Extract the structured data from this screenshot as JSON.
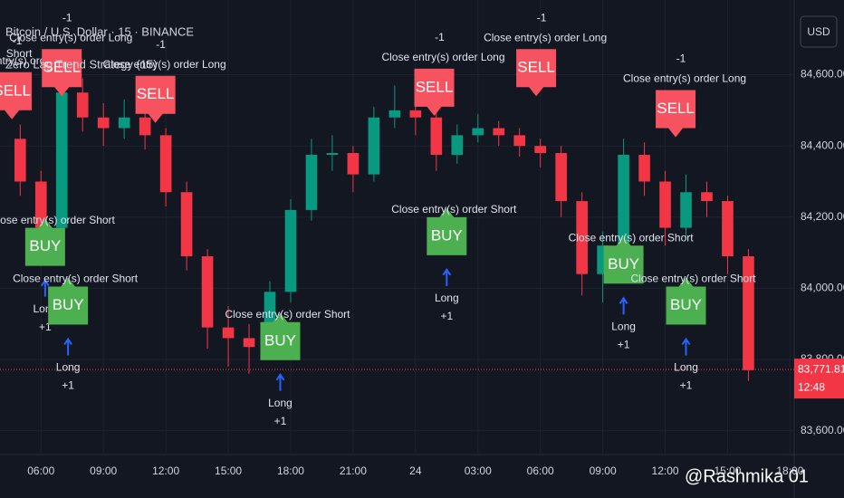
{
  "chart_data": {
    "type": "candlestick",
    "title": "Bitcoin / U.S. Dollar · 15 · BINANCE",
    "subtitle": "Zero Lag Trend Strategy (15)",
    "currency": "USD",
    "up_color": "#089981",
    "down_color": "#f23645",
    "x": [
      5,
      6,
      7,
      8,
      9,
      10,
      11,
      12,
      13,
      14,
      15,
      16,
      17,
      18,
      19,
      20,
      21,
      22,
      23,
      24,
      25,
      26,
      27,
      28,
      29,
      30,
      31,
      32,
      33,
      34,
      35,
      36,
      37,
      38,
      39,
      40
    ],
    "open": [
      84420,
      84300,
      84170,
      84550,
      84480,
      84450,
      84480,
      84430,
      84270,
      84090,
      83890,
      83860,
      83835,
      83990,
      84220,
      84375,
      84380,
      84320,
      84480,
      84500,
      84480,
      84375,
      84430,
      84450,
      84430,
      84400,
      84380,
      84245,
      84040,
      84120,
      84375,
      84300,
      84170,
      84270,
      84245,
      84090
    ],
    "high": [
      84460,
      84330,
      84600,
      84590,
      84520,
      84530,
      84510,
      84450,
      84300,
      84110,
      83950,
      83900,
      84020,
      84250,
      84420,
      84430,
      84400,
      84510,
      84570,
      84530,
      84500,
      84460,
      84490,
      84470,
      84450,
      84420,
      84400,
      84270,
      84160,
      84420,
      84410,
      84330,
      84320,
      84300,
      84260,
      84110
    ],
    "low": [
      84260,
      84120,
      84150,
      84440,
      84400,
      84420,
      84390,
      84230,
      84050,
      83830,
      83780,
      83760,
      83810,
      83960,
      84190,
      84330,
      84270,
      84300,
      84450,
      84430,
      84330,
      84350,
      84410,
      84400,
      84370,
      84340,
      84200,
      83980,
      83960,
      84100,
      84260,
      84120,
      84140,
      84200,
      84040,
      83740
    ],
    "close": [
      84300,
      84170,
      84550,
      84480,
      84450,
      84480,
      84430,
      84270,
      84090,
      83890,
      83860,
      83835,
      83990,
      84220,
      84375,
      84380,
      84320,
      84480,
      84500,
      84480,
      84375,
      84430,
      84450,
      84430,
      84400,
      84380,
      84245,
      84040,
      84120,
      84375,
      84300,
      84170,
      84270,
      84245,
      84090,
      83770
    ],
    "xlim": [
      4.03,
      42.2
    ],
    "ylim": [
      83538,
      84810
    ],
    "xticks": [
      {
        "value": 6,
        "label": "06:00"
      },
      {
        "value": 9,
        "label": "09:00"
      },
      {
        "value": 12,
        "label": "12:00"
      },
      {
        "value": 15,
        "label": "15:00"
      },
      {
        "value": 18,
        "label": "18:00"
      },
      {
        "value": 21,
        "label": "21:00"
      },
      24,
      {
        "value": 27,
        "label": "03:00"
      },
      {
        "value": 30,
        "label": "06:00"
      },
      {
        "value": 33,
        "label": "09:00"
      },
      {
        "value": 36,
        "label": "12:00"
      },
      {
        "value": 39,
        "label": "15:00"
      },
      {
        "value": 42,
        "label": "18:00"
      }
    ],
    "yticks": [
      {
        "value": 83600,
        "label": "83,600.00"
      },
      {
        "value": 83800,
        "label": "83,800.00"
      },
      {
        "value": 84000,
        "label": "84,000.00"
      },
      {
        "value": 84200,
        "label": "84,200.00"
      },
      {
        "value": 84400,
        "label": "84,400.00"
      },
      {
        "value": 84600,
        "label": "84,600.00"
      }
    ],
    "last_price": {
      "value": 83771.81,
      "label": "83,771.81"
    },
    "countdown": "12:48",
    "signals": [
      {
        "side": "SELL",
        "x": 4.6,
        "price": 84490,
        "note": "Close entry(s) order Long",
        "qty": "-1",
        "entry": "Short"
      },
      {
        "side": "SELL",
        "x": 7,
        "price": 84555,
        "note": "Close entry(s) order Long",
        "qty": "-1"
      },
      {
        "side": "SELL",
        "x": 11.5,
        "price": 84480,
        "note": "Close entry(s) order Long",
        "qty": "-1"
      },
      {
        "side": "SELL",
        "x": 24.9,
        "price": 84500,
        "note": "Close entry(s) order Long",
        "qty": "-1"
      },
      {
        "side": "SELL",
        "x": 29.8,
        "price": 84555,
        "note": "Close entry(s) order Long",
        "qty": "-1"
      },
      {
        "side": "SELL",
        "x": 36.5,
        "price": 84440,
        "note": "Close entry(s) order Long",
        "qty": "-1"
      },
      {
        "side": "BUY",
        "x": 6.2,
        "price": 84180,
        "note": "Close entry(s) order Short",
        "qty": "+1",
        "entry": "Long"
      },
      {
        "side": "BUY",
        "x": 7.3,
        "price": 84015,
        "note": "Close entry(s) order Short",
        "qty": "+1",
        "entry": "Long"
      },
      {
        "side": "BUY",
        "x": 17.5,
        "price": 83915,
        "note": "Close entry(s) order Short",
        "qty": "+1",
        "entry": "Long"
      },
      {
        "side": "BUY",
        "x": 25.5,
        "price": 84210,
        "note": "Close entry(s) order Short",
        "qty": "+1",
        "entry": "Long"
      },
      {
        "side": "BUY",
        "x": 34,
        "price": 84130,
        "note": "Close entry(s) order Short",
        "qty": "+1",
        "entry": "Long"
      },
      {
        "side": "BUY",
        "x": 37,
        "price": 84015,
        "note": "Close entry(s) order Short",
        "qty": "+1",
        "entry": "Long"
      }
    ],
    "watermark": "@Rashmika 01"
  }
}
